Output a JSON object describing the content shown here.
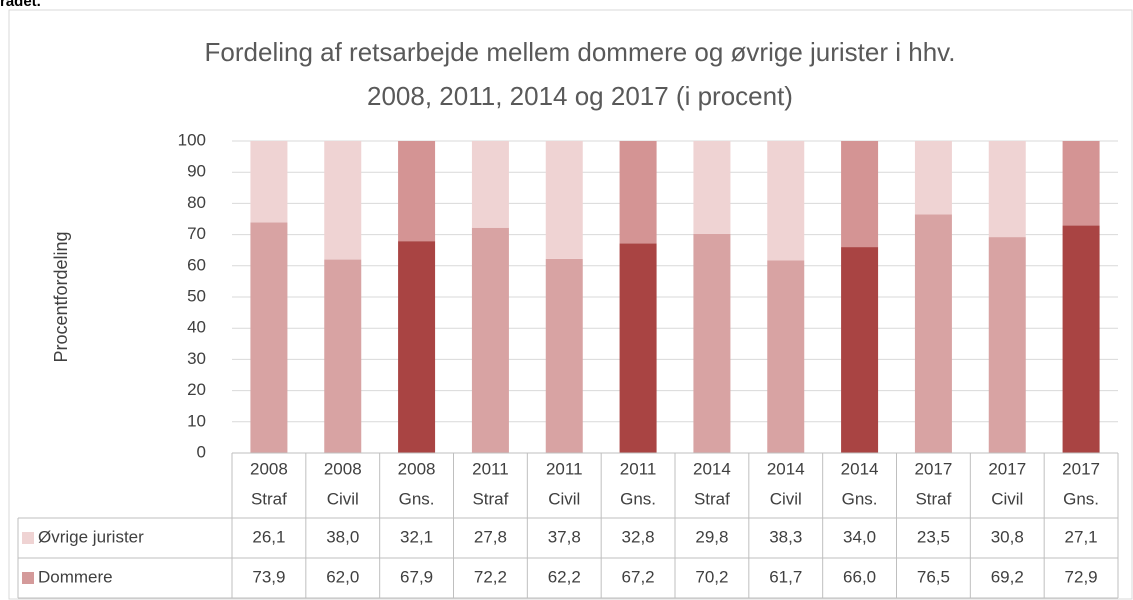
{
  "page_text": "rådet.",
  "chart_data": {
    "type": "stacked-bar",
    "title": [
      "Fordeling af retsarbejde mellem dommere og øvrige jurister i hhv.",
      "2008, 2011, 2014 og 2017 (i procent)"
    ],
    "y_label": "Procentfordeling",
    "categories": [
      [
        "2008",
        "Straf"
      ],
      [
        "2008",
        "Civil"
      ],
      [
        "2008",
        "Gns."
      ],
      [
        "2011",
        "Straf"
      ],
      [
        "2011",
        "Civil"
      ],
      [
        "2011",
        "Gns."
      ],
      [
        "2014",
        "Straf"
      ],
      [
        "2014",
        "Civil"
      ],
      [
        "2014",
        "Gns."
      ],
      [
        "2017",
        "Straf"
      ],
      [
        "2017",
        "Civil"
      ],
      [
        "2017",
        "Gns."
      ]
    ],
    "series": [
      {
        "name": "Øvrige jurister",
        "color": "#efd3d3",
        "colors": [
          "#efd3d3",
          "#efd3d3",
          "#d49494",
          "#efd3d3",
          "#efd3d3",
          "#d49494",
          "#efd3d3",
          "#efd3d3",
          "#d49494",
          "#efd3d3",
          "#efd3d3",
          "#d49494"
        ],
        "values": [
          26.1,
          38.0,
          32.1,
          27.8,
          37.8,
          32.8,
          29.8,
          38.3,
          34.0,
          23.5,
          30.8,
          27.1
        ],
        "value_labels": [
          "26,1",
          "38,0",
          "32,1",
          "27,8",
          "37,8",
          "32,8",
          "29,8",
          "38,3",
          "34,0",
          "23,5",
          "30,8",
          "27,1"
        ]
      },
      {
        "name": "Dommere",
        "color": "#d49a9a",
        "colors": [
          "#d8a3a3",
          "#d8a3a3",
          "#a94443",
          "#d8a3a3",
          "#d8a3a3",
          "#a94443",
          "#d8a3a3",
          "#d8a3a3",
          "#a94443",
          "#d8a3a3",
          "#d8a3a3",
          "#a94443"
        ],
        "values": [
          73.9,
          62.0,
          67.9,
          72.2,
          62.2,
          67.2,
          70.2,
          61.7,
          66.0,
          76.5,
          69.2,
          72.9
        ],
        "value_labels": [
          "73,9",
          "62,0",
          "67,9",
          "72,2",
          "62,2",
          "67,2",
          "70,2",
          "61,7",
          "66,0",
          "76,5",
          "69,2",
          "72,9"
        ]
      }
    ],
    "ylim": [
      0,
      100
    ],
    "yticks": [
      0,
      10,
      20,
      30,
      40,
      50,
      60,
      70,
      80,
      90,
      100
    ],
    "grid": true
  }
}
